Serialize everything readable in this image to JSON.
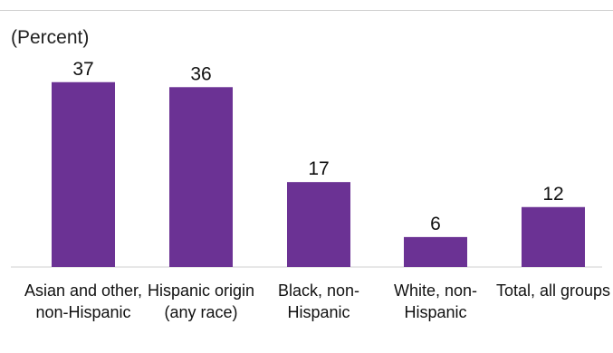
{
  "unit_label": "(Percent)",
  "chart_data": {
    "type": "bar",
    "categories": [
      [
        "Asian and other,",
        "non-Hispanic"
      ],
      [
        "Hispanic origin",
        "(any race)"
      ],
      [
        "Black, non-",
        "Hispanic"
      ],
      [
        "White, non-",
        "Hispanic"
      ],
      [
        "Total, all groups"
      ]
    ],
    "values": [
      37,
      36,
      17,
      6,
      12
    ],
    "ylabel": "(Percent)",
    "ylim": [
      0,
      40
    ],
    "grid": false,
    "bar_color": "#6b3294"
  }
}
